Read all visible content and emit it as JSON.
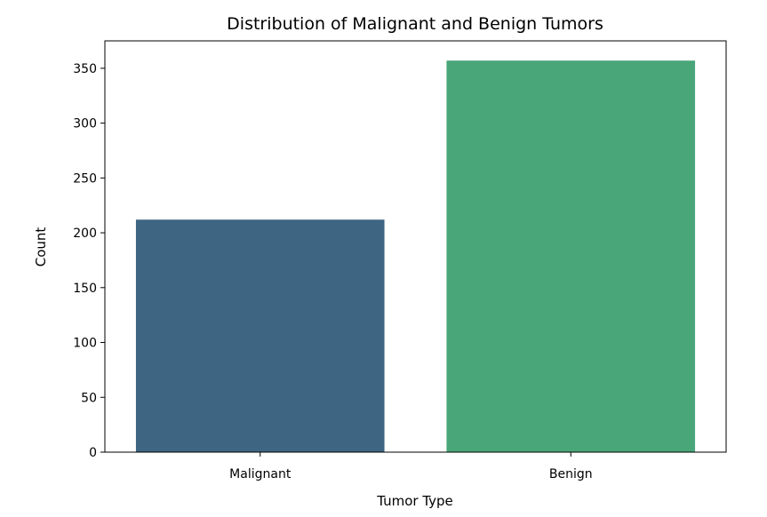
{
  "chart_data": {
    "type": "bar",
    "title": "Distribution of Malignant and Benign Tumors",
    "xlabel": "Tumor Type",
    "ylabel": "Count",
    "categories": [
      "Malignant",
      "Benign"
    ],
    "values": [
      212,
      357
    ],
    "colors": [
      "#3e6582",
      "#48a679"
    ],
    "ylim": [
      0,
      375
    ],
    "yticks": [
      0,
      50,
      100,
      150,
      200,
      250,
      300,
      350
    ],
    "grid": false,
    "legend": "none"
  }
}
